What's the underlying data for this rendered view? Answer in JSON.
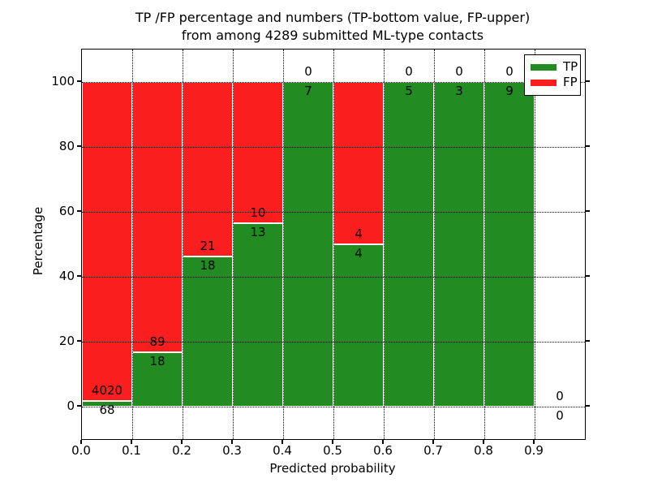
{
  "title": {
    "line1": "TP /FP percentage and numbers (TP-bottom value, FP-upper)",
    "line2": "from among 4289 submitted ML-type contacts"
  },
  "axes": {
    "xlabel": "Predicted probability",
    "ylabel": "Percentage"
  },
  "legend": {
    "position": "upper right",
    "entries": [
      {
        "label": "TP",
        "color": "#228b22"
      },
      {
        "label": "FP",
        "color": "#fb1e1e"
      }
    ]
  },
  "chart_data": {
    "type": "bar",
    "stacked": true,
    "normalized_to_percent": true,
    "title": "TP /FP percentage and numbers (TP-bottom value, FP-upper) from among 4289 submitted ML-type contacts",
    "total_submitted_contacts": 4289,
    "xlabel": "Predicted probability",
    "ylabel": "Percentage",
    "xlim": [
      0.0,
      1.0
    ],
    "ylim": [
      -10,
      110
    ],
    "bar_width": 0.1,
    "bin_left_edges": [
      0.0,
      0.1,
      0.2,
      0.3,
      0.4,
      0.5,
      0.6,
      0.7,
      0.8,
      0.9
    ],
    "categories": [
      "0.0-0.1",
      "0.1-0.2",
      "0.2-0.3",
      "0.3-0.4",
      "0.4-0.5",
      "0.5-0.6",
      "0.6-0.7",
      "0.7-0.8",
      "0.8-0.9",
      "0.9-1.0"
    ],
    "series": [
      {
        "name": "TP",
        "color": "#228b22",
        "counts": [
          68,
          18,
          18,
          13,
          7,
          4,
          5,
          3,
          9,
          0
        ]
      },
      {
        "name": "FP",
        "color": "#fb1e1e",
        "counts": [
          4020,
          89,
          21,
          10,
          0,
          4,
          0,
          0,
          0,
          0
        ]
      }
    ],
    "tp_percent_of_bin": [
      1.66,
      16.82,
      46.15,
      56.52,
      100,
      50,
      100,
      100,
      100,
      0
    ],
    "x_ticks": [
      "0.0",
      "0.1",
      "0.2",
      "0.3",
      "0.4",
      "0.5",
      "0.6",
      "0.7",
      "0.8",
      "0.9"
    ],
    "y_ticks": [
      0,
      20,
      40,
      60,
      80,
      100
    ],
    "grid": {
      "show": true,
      "style": "dotted",
      "color": "#000000"
    },
    "legend_position": "upper right"
  }
}
